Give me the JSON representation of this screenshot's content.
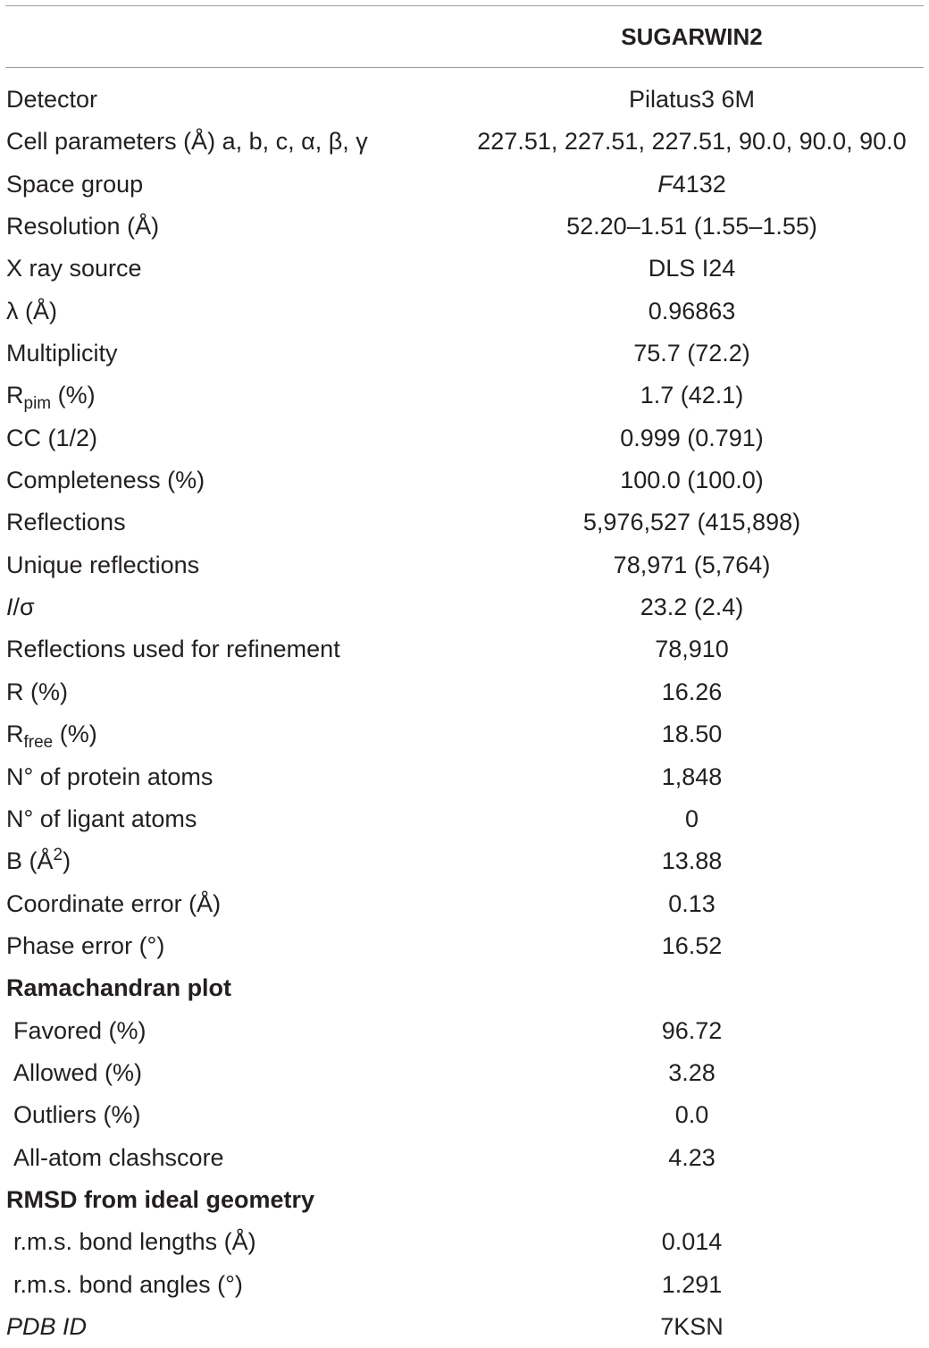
{
  "table": {
    "column_header": "SUGARWIN2",
    "rows": [
      {
        "label": "Detector",
        "value": "Pilatus3 6M"
      },
      {
        "label": "Cell parameters (Å) a, b, c, α, β, γ",
        "value": "227.51, 227.51, 227.51, 90.0, 90.0, 90.0"
      },
      {
        "label": "Space group",
        "value_italic": "F",
        "value": "4132"
      },
      {
        "label": "Resolution (Å)",
        "value": "52.20–1.51 (1.55–1.55)"
      },
      {
        "label": "X ray source",
        "value": "DLS I24"
      },
      {
        "label": "λ (Å)",
        "value": "0.96863"
      },
      {
        "label": "Multiplicity",
        "value": "75.7 (72.2)"
      },
      {
        "label": "R",
        "label_sub": "pim",
        "label_suffix": " (%)",
        "value": "1.7 (42.1)"
      },
      {
        "label": "CC (1/2)",
        "value": "0.999 (0.791)"
      },
      {
        "label": "Completeness (%)",
        "value": "100.0 (100.0)"
      },
      {
        "label": "Reflections",
        "value": "5,976,527 (415,898)"
      },
      {
        "label": "Unique reflections",
        "value": "78,971 (5,764)"
      },
      {
        "label_italic": "I",
        "label": "/σ",
        "value": "23.2 (2.4)"
      },
      {
        "label": "Reflections used for refinement",
        "value": "78,910"
      },
      {
        "label": "R (%)",
        "value": "16.26"
      },
      {
        "label": "R",
        "label_sub": "free",
        "label_suffix": " (%)",
        "value": "18.50"
      },
      {
        "label": "N° of protein atoms",
        "value": "1,848"
      },
      {
        "label": "N° of ligant atoms",
        "value": "0"
      },
      {
        "label": "B (Å",
        "label_sup": "2",
        "label_suffix": ")",
        "value": "13.88"
      },
      {
        "label": "Coordinate error (Å)",
        "value": "0.13"
      },
      {
        "label": "Phase error (°)",
        "value": "16.52"
      },
      {
        "label": "Ramachandran plot",
        "value": ""
      },
      {
        "label": "Favored (%)",
        "value": "96.72"
      },
      {
        "label": "Allowed (%)",
        "value": "3.28"
      },
      {
        "label": "Outliers (%)",
        "value": "0.0"
      },
      {
        "label": "All-atom clashscore",
        "value": "4.23"
      },
      {
        "label": "RMSD from ideal geometry",
        "value": ""
      },
      {
        "label": "r.m.s. bond lengths (Å)",
        "value": "0.014"
      },
      {
        "label": "r.m.s. bond angles (°)",
        "value": "1.291"
      },
      {
        "label": "PDB ID",
        "value": "7KSN"
      }
    ]
  }
}
